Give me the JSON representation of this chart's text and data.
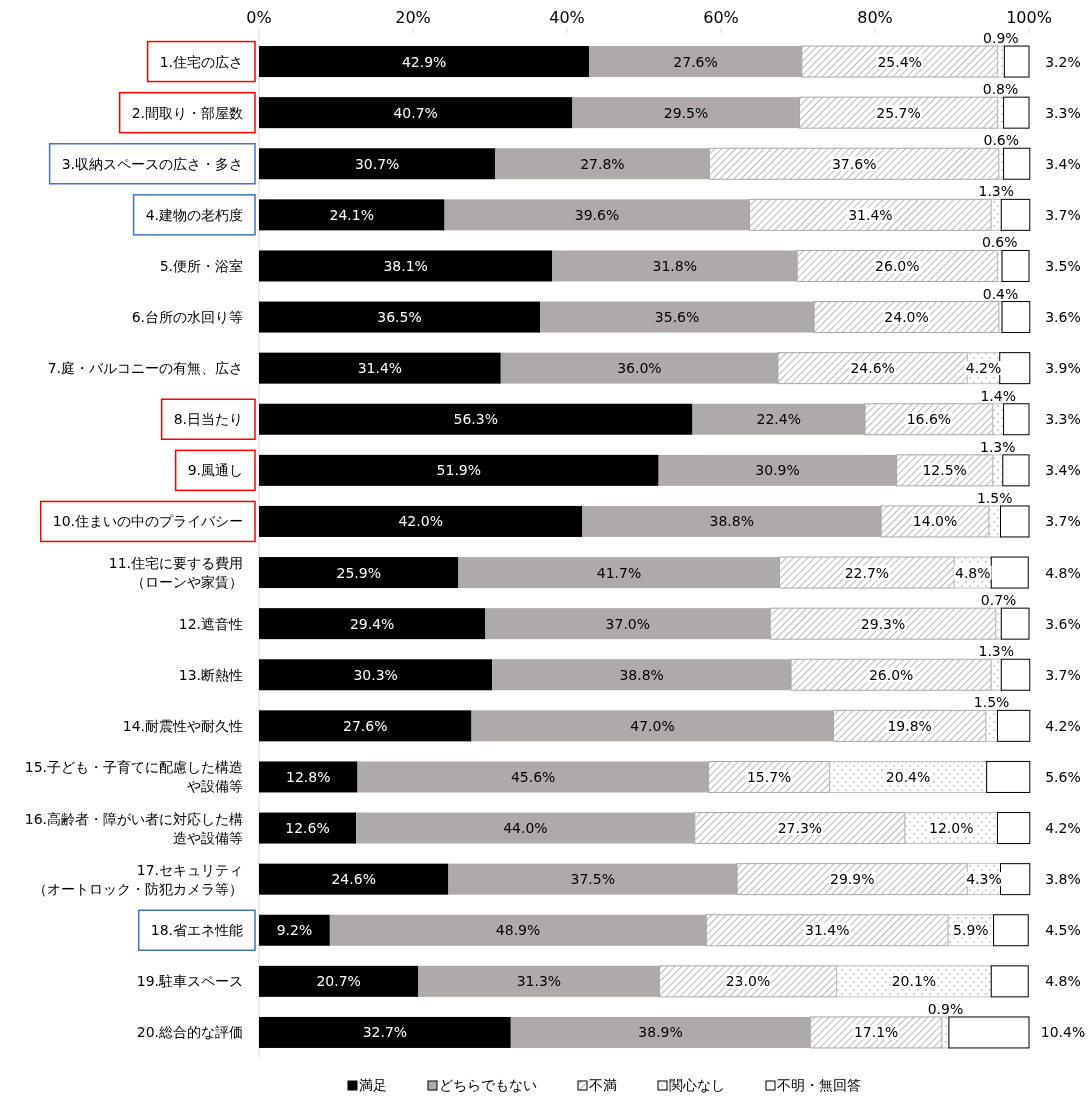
{
  "chart_data": {
    "type": "bar",
    "orientation": "horizontal",
    "stacked": true,
    "legend": "bottom",
    "grid": false,
    "categories": [
      "1.住宅の広さ",
      "2.間取り・部屋数",
      "3.収納スペースの広さ・多さ",
      "4.建物の老朽度",
      "5.便所・浴室",
      "6.台所の水回り等",
      "7.庭・バルコニーの有無、広さ",
      "8.日当たり",
      "9.風通し",
      "10.住まいの中のプライバシー",
      "11.住宅に要する費用（ローンや家賃）",
      "12.遮音性",
      "13.断熱性",
      "14.耐震性や耐久性",
      "15.子ども・子育てに配慮した構造や設備等",
      "16.高齢者・障がい者に対応した構造や設備等",
      "17.セキュリティ（オートロック・防犯カメラ等）",
      "18.省エネ性能",
      "19.駐車スペース",
      "20.総合的な評価"
    ],
    "xlim": [
      0,
      100
    ],
    "xticks": [
      {
        "value": 0,
        "label": "0%"
      },
      {
        "value": 20,
        "label": "20%"
      },
      {
        "value": 40,
        "label": "40%"
      },
      {
        "value": 60,
        "label": "60%"
      },
      {
        "value": 80,
        "label": "80%"
      },
      {
        "value": 100,
        "label": "100%"
      }
    ],
    "series": [
      {
        "name": "満足",
        "color": "#000000",
        "values": [
          42.9,
          40.7,
          30.7,
          24.1,
          38.1,
          36.5,
          31.4,
          56.3,
          51.9,
          42.0,
          25.9,
          29.4,
          30.3,
          27.6,
          12.8,
          12.6,
          24.6,
          9.2,
          20.7,
          32.7
        ],
        "value_labels": [
          "42.9%",
          "40.7%",
          "30.7%",
          "24.1%",
          "38.1%",
          "36.5%",
          "31.4%",
          "56.3%",
          "51.9%",
          "42.0%",
          "25.9%",
          "29.4%",
          "30.3%",
          "27.6%",
          "12.8%",
          "12.6%",
          "24.6%",
          "9.2%",
          "20.7%",
          "32.7%"
        ]
      },
      {
        "name": "どちらでもない",
        "color": "#aeaaaa",
        "values": [
          27.6,
          29.5,
          27.8,
          39.6,
          31.8,
          35.6,
          36.0,
          22.4,
          30.9,
          38.8,
          41.7,
          37.0,
          38.8,
          47.0,
          45.6,
          44.0,
          37.5,
          48.9,
          31.3,
          38.9
        ],
        "value_labels": [
          "27.6%",
          "29.5%",
          "27.8%",
          "39.6%",
          "31.8%",
          "35.6%",
          "36.0%",
          "22.4%",
          "30.9%",
          "38.8%",
          "41.7%",
          "37.0%",
          "38.8%",
          "47.0%",
          "45.6%",
          "44.0%",
          "37.5%",
          "48.9%",
          "31.3%",
          "38.9%"
        ]
      },
      {
        "name": "不満",
        "color": "#a6a6a6",
        "values": [
          25.4,
          25.7,
          37.6,
          31.4,
          26.0,
          24.0,
          24.6,
          16.6,
          12.5,
          14.0,
          22.7,
          29.3,
          26.0,
          19.8,
          15.7,
          27.3,
          29.9,
          31.4,
          23.0,
          17.1
        ],
        "value_labels": [
          "25.4%",
          "25.7%",
          "37.6%",
          "31.4%",
          "26.0%",
          "24.0%",
          "24.6%",
          "16.6%",
          "12.5%",
          "14.0%",
          "22.7%",
          "29.3%",
          "26.0%",
          "19.8%",
          "15.7%",
          "27.3%",
          "29.9%",
          "31.4%",
          "23.0%",
          "17.1%"
        ]
      },
      {
        "name": "関心なし",
        "color": "#bfbfbf",
        "values": [
          0.9,
          0.8,
          0.6,
          1.3,
          0.6,
          0.4,
          4.2,
          1.4,
          1.3,
          1.5,
          4.8,
          0.7,
          1.3,
          1.5,
          20.4,
          12.0,
          4.3,
          5.9,
          20.1,
          0.9
        ],
        "value_labels": [
          "0.9%",
          "0.8%",
          "0.6%",
          "1.3%",
          "0.6%",
          "0.4%",
          "4.2%",
          "1.4%",
          "1.3%",
          "1.5%",
          "4.8%",
          "0.7%",
          "1.3%",
          "1.5%",
          "20.4%",
          "12.0%",
          "4.3%",
          "5.9%",
          "20.1%",
          "0.9%"
        ]
      },
      {
        "name": "不明・無回答",
        "color": "#ffffff",
        "values": [
          3.2,
          3.3,
          3.4,
          3.7,
          3.5,
          3.6,
          3.9,
          3.3,
          3.4,
          3.7,
          4.8,
          3.6,
          3.7,
          4.2,
          5.6,
          4.2,
          3.8,
          4.5,
          4.8,
          10.4
        ],
        "value_labels": [
          "3.2%",
          "3.3%",
          "3.4%",
          "3.7%",
          "3.5%",
          "3.6%",
          "3.9%",
          "3.3%",
          "3.4%",
          "3.7%",
          "4.8%",
          "3.6%",
          "3.7%",
          "4.2%",
          "5.6%",
          "4.2%",
          "3.8%",
          "4.5%",
          "4.8%",
          "10.4%"
        ]
      }
    ]
  }
}
